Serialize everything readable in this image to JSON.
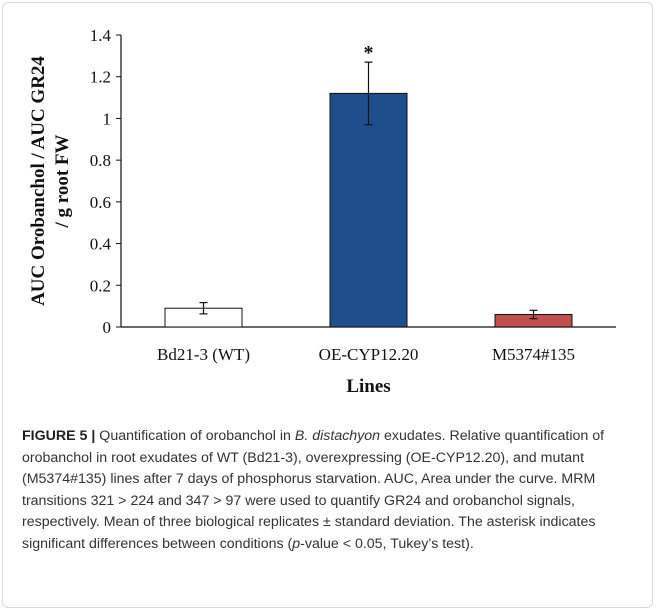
{
  "chart_data": {
    "type": "bar",
    "categories": [
      "Bd21-3 (WT)",
      "OE-CYP12.20",
      "M5374#135"
    ],
    "values": [
      0.09,
      1.12,
      0.06
    ],
    "errors": [
      0.027,
      0.15,
      0.02
    ],
    "colors": [
      "#ffffff",
      "#1f4e8c",
      "#c0504d"
    ],
    "annotations": [
      "",
      "*",
      ""
    ],
    "ylabel_line1": "AUC Orobanchol / AUC GR24",
    "ylabel_line2": "/ g root FW",
    "xlabel": "Lines",
    "ylim": [
      0,
      1.4
    ],
    "yticks": [
      "0",
      "0.2",
      "0.4",
      "0.6",
      "0.8",
      "1",
      "1.2",
      "1.4"
    ],
    "grid": false
  },
  "caption": {
    "label": "FIGURE 5 |",
    "parts": [
      {
        "text": " Quantification of orobanchol in ",
        "italic": false
      },
      {
        "text": "B. distachyon",
        "italic": true
      },
      {
        "text": " exudates. Relative quantification of orobanchol in root exudates of WT (Bd21-3), overexpressing (OE-CYP12.20), and mutant (M5374#135) lines after 7 days of phosphorus starvation. AUC, Area under the curve. MRM transitions 321 > 224 and 347 > 97 were used to quantify GR24 and orobanchol signals, respectively. Mean of three biological replicates ± standard deviation. The asterisk indicates significant differences between conditions (",
        "italic": false
      },
      {
        "text": "p",
        "italic": true
      },
      {
        "text": "-value < 0.05, Tukey’s test).",
        "italic": false
      }
    ]
  }
}
